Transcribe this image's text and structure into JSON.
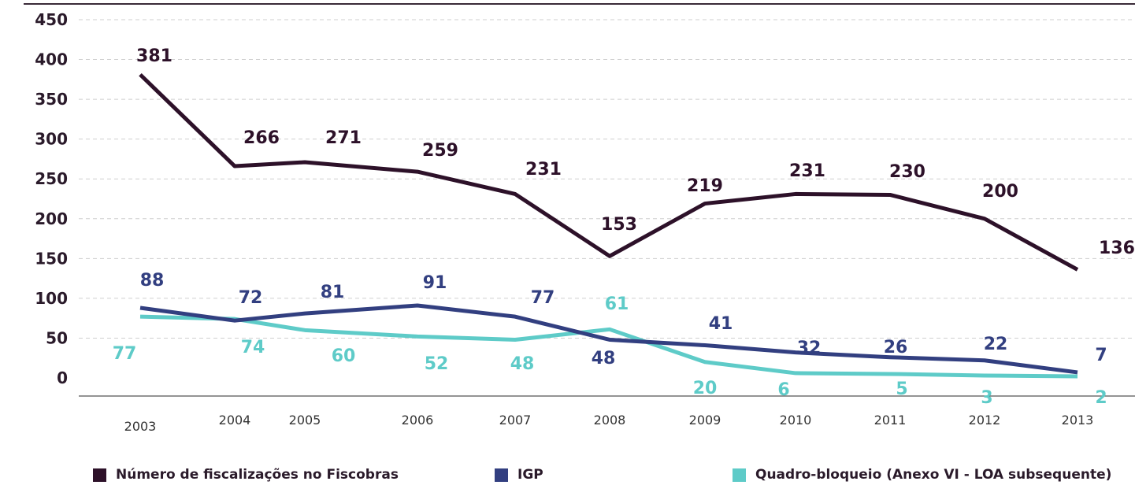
{
  "chart_data": {
    "type": "line",
    "title": "",
    "xlabel": "",
    "ylabel": "",
    "categories": [
      "2003",
      "2004",
      "2005",
      "2006",
      "2007",
      "2008",
      "2009",
      "2010",
      "2011",
      "2012",
      "2013"
    ],
    "ylim": [
      0,
      450
    ],
    "yticks": [
      "0",
      "50",
      "100",
      "150",
      "200",
      "250",
      "300",
      "350",
      "400",
      "450"
    ],
    "grid": true,
    "legend_position": "bottom",
    "series": [
      {
        "name": "Número de fiscalizações no Fiscobras",
        "color": "#2d1129",
        "values": [
          381,
          266,
          271,
          259,
          231,
          153,
          219,
          231,
          230,
          200,
          136
        ],
        "labels": [
          "381",
          "266",
          "271",
          "259",
          "231",
          "153",
          "219",
          "231",
          "230",
          "200",
          "136"
        ]
      },
      {
        "name": "IGP",
        "color": "#323f80",
        "values": [
          88,
          72,
          81,
          91,
          77,
          48,
          41,
          32,
          26,
          22,
          7
        ],
        "labels": [
          "88",
          "72",
          "81",
          "91",
          "77",
          "48",
          "41",
          "32",
          "26",
          "22",
          "7"
        ]
      },
      {
        "name": "Quadro-bloqueio (Anexo VI - LOA subsequente)",
        "color": "#5ecbc8",
        "values": [
          77,
          74,
          60,
          52,
          48,
          61,
          20,
          6,
          5,
          3,
          2
        ],
        "labels": [
          "77",
          "74",
          "60",
          "52",
          "48",
          "61",
          "20",
          "6",
          "5",
          "3",
          "2"
        ]
      }
    ]
  }
}
